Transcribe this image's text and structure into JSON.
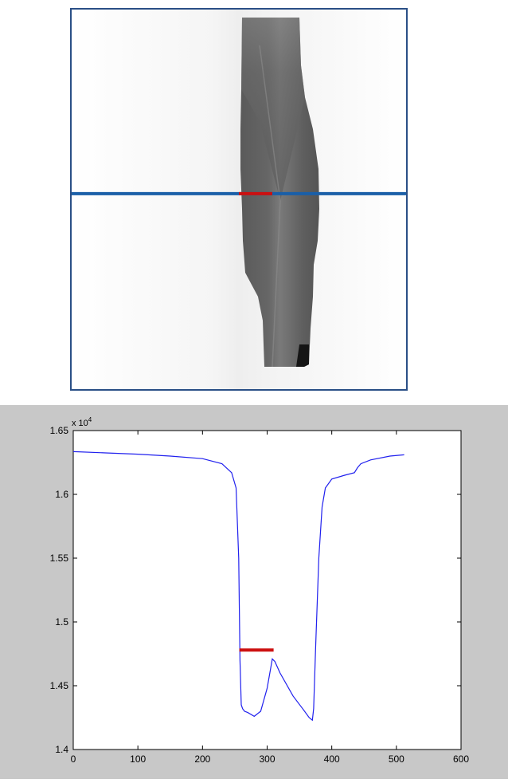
{
  "colors": {
    "scan_line": "#1a5fa8",
    "roi_marker": "#cc1010",
    "profile_line": "#2020ee",
    "figure_bg": "#c8c8c8"
  },
  "chart_data": {
    "type": "line",
    "title": "",
    "xlabel": "",
    "ylabel": "",
    "xlim": [
      0,
      600
    ],
    "ylim": [
      14000,
      16500
    ],
    "y_exponent_label": "x 10",
    "y_exponent_power": "4",
    "x_ticks": [
      0,
      100,
      200,
      300,
      400,
      500,
      600
    ],
    "x_tick_labels": [
      "0",
      "100",
      "200",
      "300",
      "400",
      "500",
      "600"
    ],
    "y_ticks": [
      14000,
      14500,
      15000,
      15500,
      16000,
      16500
    ],
    "y_tick_labels": [
      "1.4",
      "1.45",
      "1.5",
      "1.55",
      "1.6",
      "1.65"
    ],
    "grid": false,
    "series": [
      {
        "x": [
          0,
          50,
          100,
          150,
          200,
          230,
          245,
          252,
          256,
          258,
          260,
          262,
          265,
          270,
          280,
          290,
          300,
          308,
          312,
          320,
          340,
          355,
          365,
          370,
          372,
          375,
          380,
          385,
          390,
          400,
          420,
          435,
          440,
          445,
          460,
          490,
          512
        ],
        "y": [
          16335,
          16325,
          16315,
          16300,
          16280,
          16240,
          16170,
          16050,
          15500,
          14700,
          14350,
          14320,
          14300,
          14290,
          14260,
          14300,
          14480,
          14710,
          14690,
          14600,
          14420,
          14320,
          14250,
          14230,
          14320,
          14800,
          15500,
          15900,
          16050,
          16120,
          16150,
          16170,
          16210,
          16240,
          16270,
          16300,
          16310
        ]
      }
    ],
    "roi_marker": {
      "x": [
        257,
        310
      ],
      "y": 14780
    }
  },
  "image_view": {
    "scan_line_row_fraction": 0.485,
    "roi_marker_fraction": [
      0.5,
      0.6
    ]
  }
}
